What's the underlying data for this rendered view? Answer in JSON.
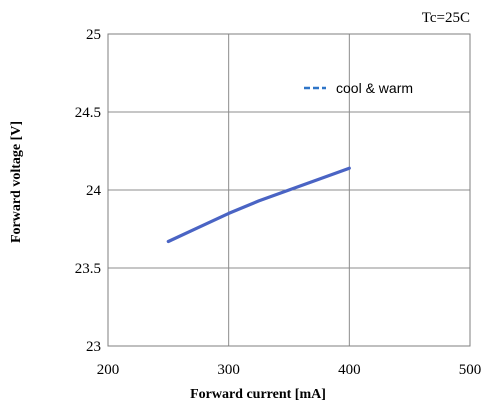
{
  "chart_data": {
    "type": "line",
    "xlabel": "Forward  current [mA]",
    "ylabel": "Forward voltage [V]",
    "annotation": "Tc=25C",
    "xlim": [
      200,
      500
    ],
    "ylim": [
      23,
      25
    ],
    "xticks": [
      "200",
      "300",
      "400",
      "500"
    ],
    "yticks": [
      "23",
      "23.5",
      "24",
      "24.5",
      "25"
    ],
    "grid": true,
    "legend_position": "top-right",
    "series": [
      {
        "name": "cool & warm",
        "color": "#4a64c4",
        "legend_color": "#2e75c8",
        "x": [
          250,
          275,
          300,
          325,
          350,
          375,
          400
        ],
        "y": [
          23.67,
          23.76,
          23.85,
          23.93,
          24.0,
          24.07,
          24.14
        ]
      }
    ]
  }
}
